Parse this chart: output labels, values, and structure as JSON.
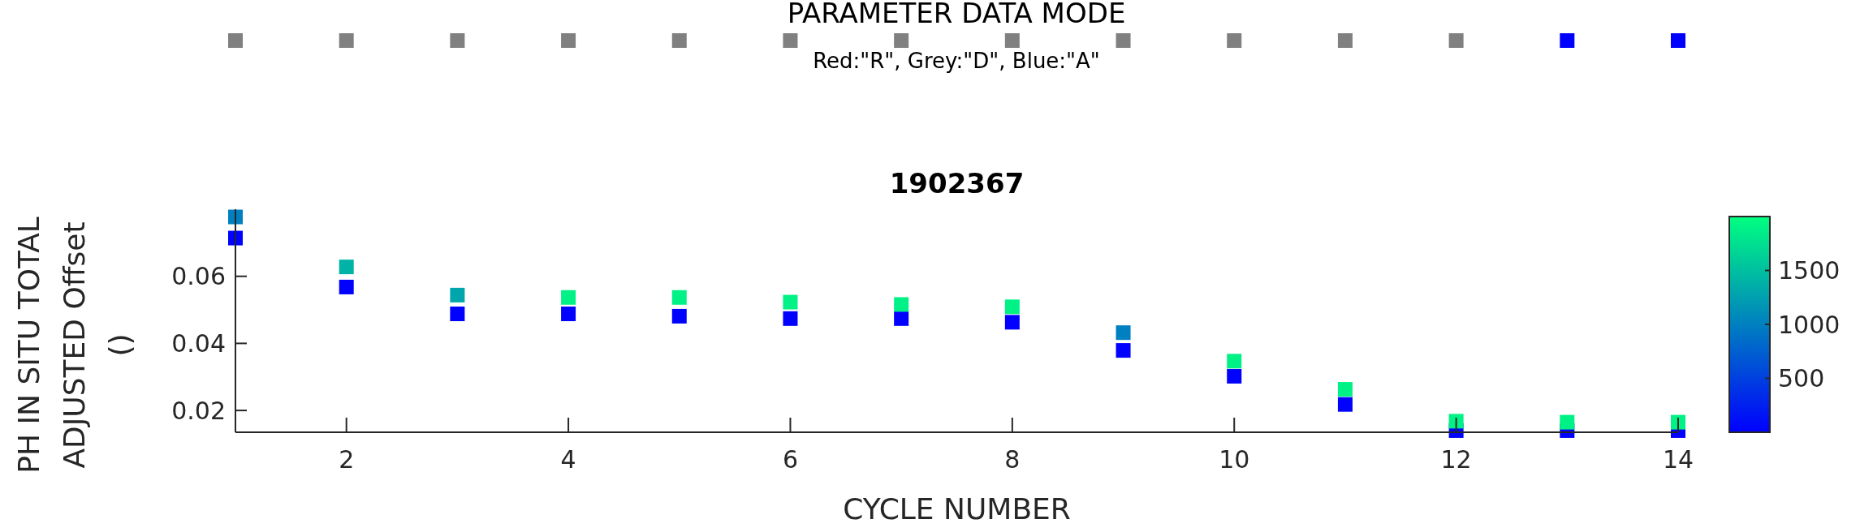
{
  "chart_data": [
    {
      "type": "other",
      "title": "PARAMETER DATA MODE",
      "subtitle": "Red:\"R\", Grey:\"D\", Blue:\"A\"",
      "colors": [
        "#808080",
        "#808080",
        "#808080",
        "#808080",
        "#808080",
        "#808080",
        "#808080",
        "#808080",
        "#808080",
        "#808080",
        "#808080",
        "#808080",
        "#0000ff",
        "#0000ff"
      ]
    },
    {
      "type": "scatter",
      "title": "1902367",
      "xlabel": "CYCLE NUMBER",
      "ylabel": "PH IN SITU TOTAL\nADJUSTED Offset\n()",
      "x": [
        1,
        1,
        2,
        2,
        3,
        3,
        4,
        4,
        5,
        5,
        6,
        6,
        7,
        7,
        8,
        8,
        9,
        9,
        10,
        10,
        11,
        11,
        12,
        12,
        13,
        13,
        14,
        14
      ],
      "values": [
        0.0714,
        0.0777,
        0.0568,
        0.0628,
        0.0488,
        0.0544,
        0.0488,
        0.0537,
        0.0481,
        0.0537,
        0.0474,
        0.0523,
        0.0474,
        0.0516,
        0.0463,
        0.0509,
        0.0379,
        0.0432,
        0.0302,
        0.0347,
        0.0218,
        0.0263,
        0.014,
        0.0168,
        0.014,
        0.0165,
        0.014,
        0.0165
      ],
      "cvalues": [
        10,
        1000,
        10,
        1400,
        10,
        1300,
        10,
        1900,
        10,
        1900,
        10,
        1900,
        10,
        1900,
        10,
        1900,
        10,
        1000,
        10,
        1900,
        10,
        1900,
        10,
        1900,
        10,
        1900,
        10,
        1900
      ],
      "clim": [
        0,
        2000
      ],
      "cticks": [
        500,
        1000,
        1500
      ],
      "xlim": [
        1,
        14
      ],
      "xticks": [
        2,
        4,
        6,
        8,
        10,
        12,
        14
      ],
      "ylim": [
        0.0135,
        0.08
      ],
      "yticks": [
        0.02,
        0.04,
        0.06
      ],
      "marker": "square",
      "grid": false
    }
  ]
}
